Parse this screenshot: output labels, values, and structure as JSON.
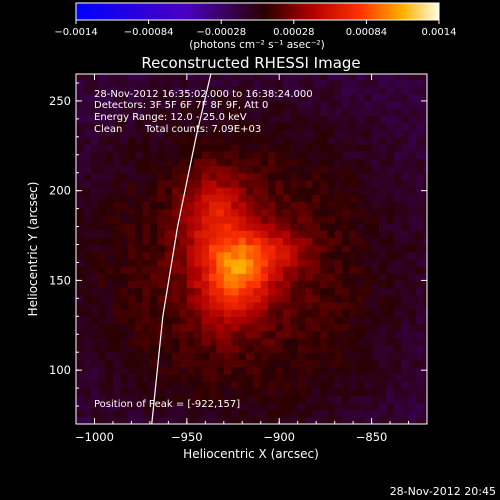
{
  "chart_data": {
    "type": "heatmap",
    "title": "Reconstructed RHESSI Image",
    "xlabel": "Heliocentric X (arcsec)",
    "ylabel": "Heliocentric Y (arcsec)",
    "xlim": [
      -1010,
      -820
    ],
    "ylim": [
      70,
      265
    ],
    "xticks": [
      {
        "value": -1000,
        "label": "−1000"
      },
      {
        "value": -950,
        "label": "−950"
      },
      {
        "value": -900,
        "label": "−900"
      },
      {
        "value": -850,
        "label": "−850"
      }
    ],
    "yticks": [
      {
        "value": 100,
        "label": "100"
      },
      {
        "value": 150,
        "label": "150"
      },
      {
        "value": 200,
        "label": "200"
      },
      {
        "value": 250,
        "label": "250"
      }
    ],
    "colorbar": {
      "range": [
        -0.0014,
        0.0014
      ],
      "ticks": [
        {
          "value": -0.0014,
          "label": "−0.0014"
        },
        {
          "value": -0.00084,
          "label": "−0.00084"
        },
        {
          "value": -0.00028,
          "label": "−0.00028"
        },
        {
          "value": 0.00028,
          "label": "0.00028"
        },
        {
          "value": 0.00084,
          "label": "0.00084"
        },
        {
          "value": 0.0014,
          "label": "0.0014"
        }
      ],
      "unit_label": "(photons cm⁻² s⁻¹ asec⁻²)"
    },
    "annotations": {
      "time_range": "28-Nov-2012 16:35:02.000 to 16:38:24.000",
      "detectors": "Detectors: 3F 5F 6F 7F 8F 9F, Att 0",
      "energy": "Energy Range: 12.0 - 25.0 keV",
      "algorithm": "Clean",
      "counts": "Total counts: 7.09E+03",
      "peak": "Position of Peak = [-922,157]"
    },
    "peak": {
      "x": -922,
      "y": 157,
      "value": 0.0014
    },
    "source_lobes": [
      {
        "x": -922,
        "y": 157,
        "sx": 14,
        "sy": 14,
        "amp": 0.00075
      },
      {
        "x": -935,
        "y": 188,
        "sx": 12,
        "sy": 16,
        "amp": 0.00045
      },
      {
        "x": -900,
        "y": 168,
        "sx": 12,
        "sy": 8,
        "amp": 0.00025
      },
      {
        "x": -930,
        "y": 135,
        "sx": 12,
        "sy": 14,
        "amp": 0.0002
      }
    ],
    "limb": [
      [
        -937,
        265
      ],
      [
        -945,
        230
      ],
      [
        -955,
        180
      ],
      [
        -963,
        130
      ],
      [
        -969,
        70
      ]
    ],
    "footer": "28-Nov-2012 20:45"
  }
}
